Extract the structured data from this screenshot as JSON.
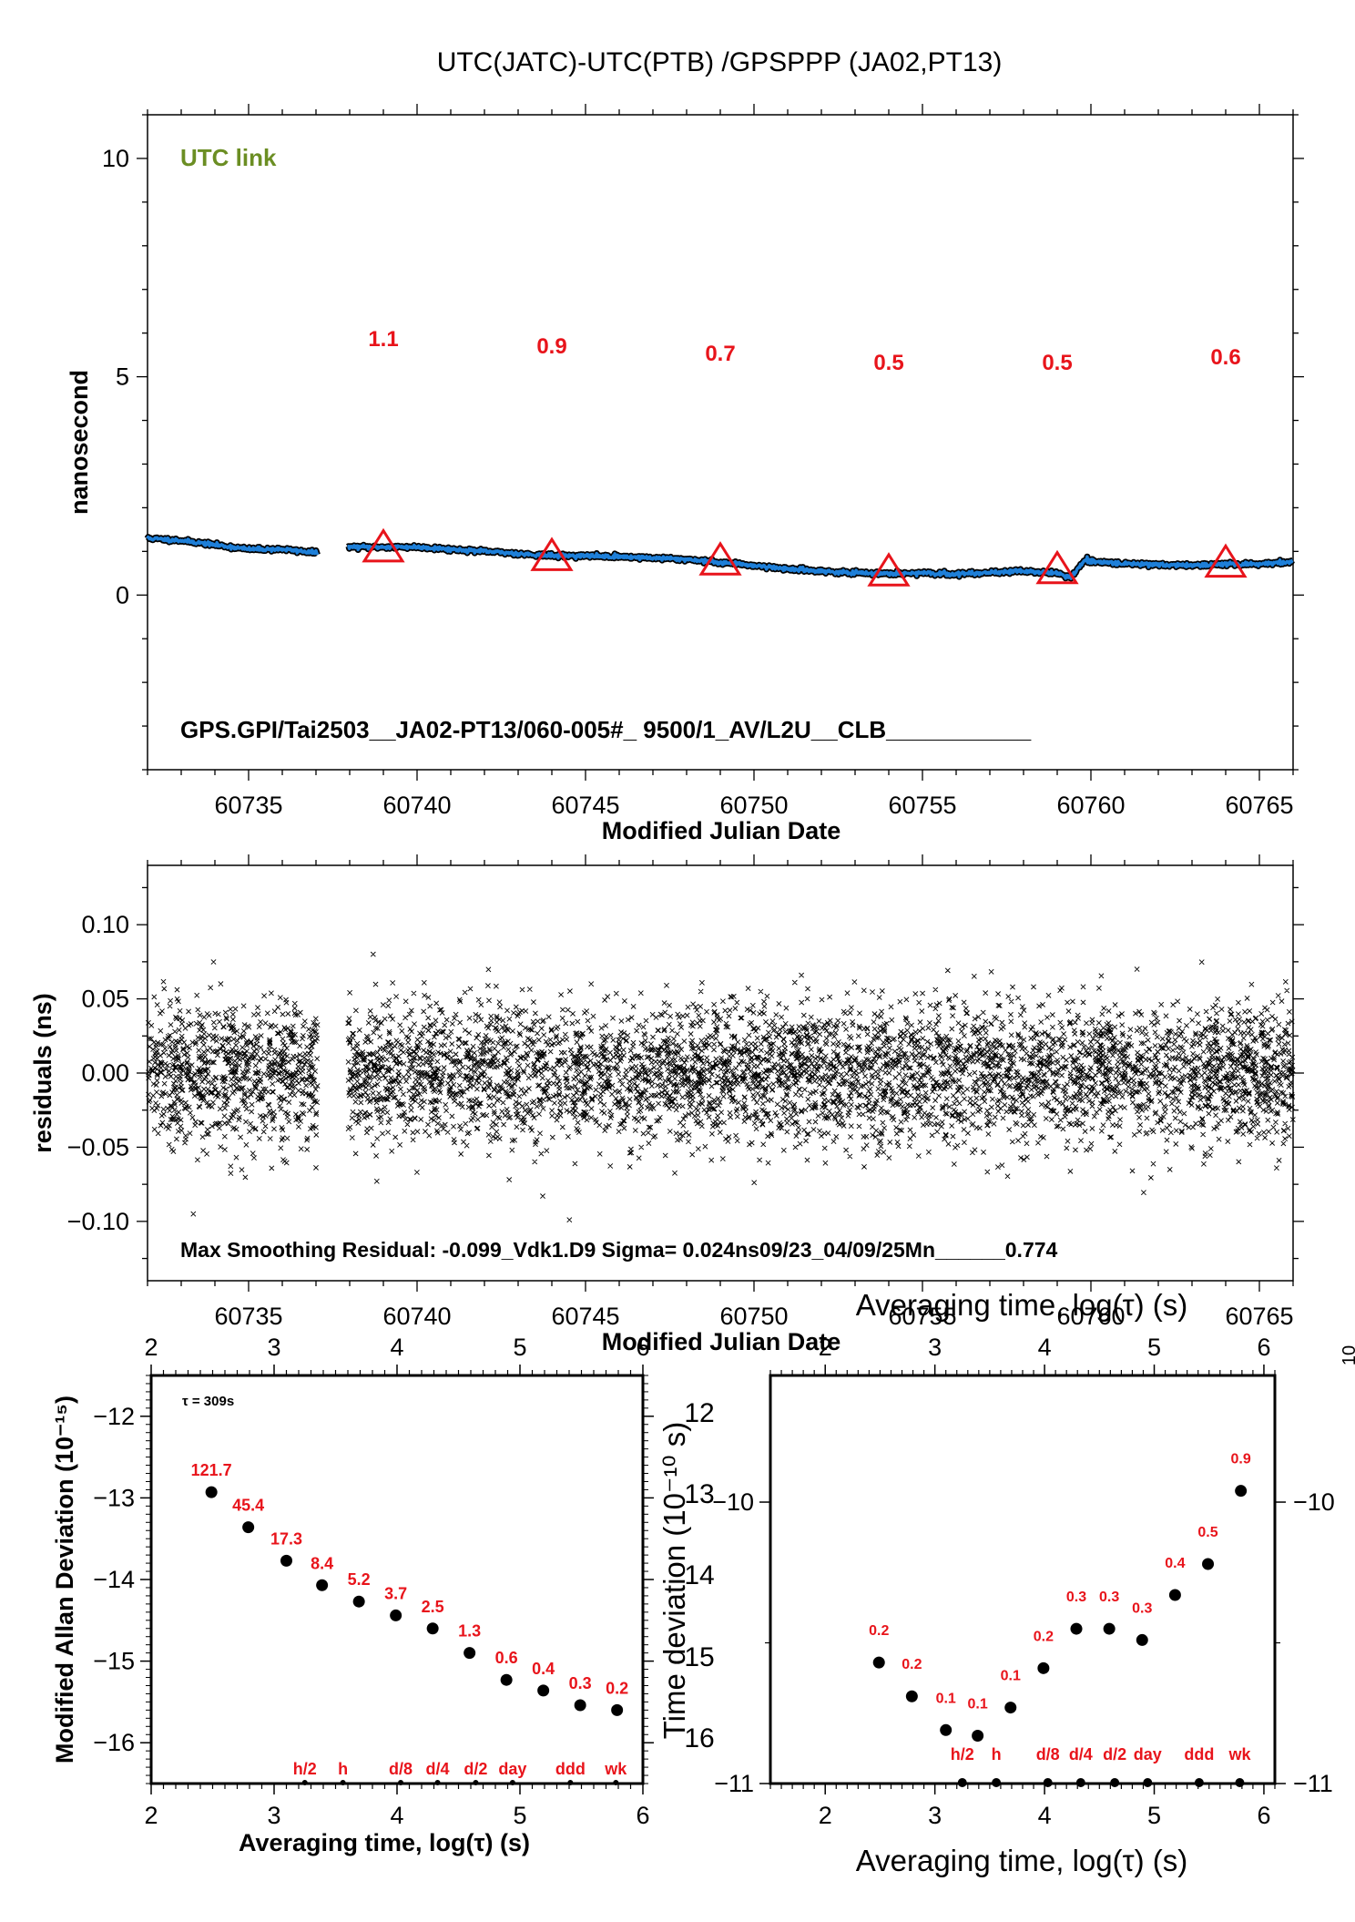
{
  "page": {
    "title": "UTC(JATC)-UTC(PTB)  /GPSPPP  (JA02,PT13)"
  },
  "colors": {
    "series_line": "#1e7fd8",
    "series_edge": "#000000",
    "annotation": "#e8141b",
    "utc_link": "#6b8e23",
    "marker": "#000000"
  },
  "chart_data": [
    {
      "type": "line",
      "id": "time-series",
      "xlabel": "Modified Julian Date",
      "ylabel": "nanosecond",
      "xlim": [
        60732,
        60766
      ],
      "ylim": [
        -4,
        11
      ],
      "x_ticks": [
        60735,
        60740,
        60745,
        60750,
        60755,
        60760,
        60765
      ],
      "y_ticks": [
        0,
        5,
        10
      ],
      "legend_label": "UTC link",
      "footer_label": "GPS.GPI/Tai2503__JA02-PT13/060-005#_  9500/1_AV/L2U__CLB___________",
      "gap": [
        60737.05,
        60737.95
      ],
      "series_points": [
        [
          60732.0,
          1.3
        ],
        [
          60733.0,
          1.25
        ],
        [
          60734.0,
          1.15
        ],
        [
          60735.0,
          1.05
        ],
        [
          60736.0,
          1.05
        ],
        [
          60737.0,
          0.97
        ],
        [
          60738.0,
          1.1
        ],
        [
          60739.0,
          1.1
        ],
        [
          60740.0,
          1.1
        ],
        [
          60741.0,
          1.05
        ],
        [
          60742.0,
          1.0
        ],
        [
          60743.0,
          0.95
        ],
        [
          60744.0,
          0.9
        ],
        [
          60745.0,
          0.9
        ],
        [
          60746.0,
          0.88
        ],
        [
          60747.0,
          0.85
        ],
        [
          60748.0,
          0.82
        ],
        [
          60749.0,
          0.75
        ],
        [
          60750.0,
          0.68
        ],
        [
          60751.0,
          0.6
        ],
        [
          60752.0,
          0.55
        ],
        [
          60753.0,
          0.5
        ],
        [
          60754.0,
          0.5
        ],
        [
          60755.0,
          0.5
        ],
        [
          60756.0,
          0.48
        ],
        [
          60757.0,
          0.52
        ],
        [
          60758.0,
          0.55
        ],
        [
          60759.0,
          0.5
        ],
        [
          60759.4,
          0.4
        ],
        [
          60759.8,
          0.78
        ],
        [
          60761.0,
          0.72
        ],
        [
          60762.0,
          0.7
        ],
        [
          60763.0,
          0.68
        ],
        [
          60764.0,
          0.7
        ],
        [
          60765.0,
          0.72
        ],
        [
          60766.0,
          0.75
        ]
      ],
      "triangles": [
        {
          "x": 60739,
          "y": 1.1,
          "label": "1.1"
        },
        {
          "x": 60744,
          "y": 0.9,
          "label": "0.9"
        },
        {
          "x": 60749,
          "y": 0.8,
          "label": "0.7"
        },
        {
          "x": 60754,
          "y": 0.55,
          "label": "0.5"
        },
        {
          "x": 60759,
          "y": 0.6,
          "label": "0.5"
        },
        {
          "x": 60764,
          "y": 0.75,
          "label": "0.6"
        }
      ]
    },
    {
      "type": "scatter",
      "id": "residuals",
      "xlabel": "Modified Julian Date",
      "ylabel": "residuals (ns)",
      "xlim": [
        60732,
        60766
      ],
      "ylim": [
        -0.14,
        0.14
      ],
      "x_ticks": [
        60735,
        60740,
        60745,
        60750,
        60755,
        60760,
        60765
      ],
      "y_ticks": [
        -0.1,
        -0.05,
        0.0,
        0.05,
        0.1
      ],
      "y_tick_labels": [
        "−0.10",
        "−0.05",
        "0.00",
        "0.05",
        "0.10"
      ],
      "footer_label": "Max Smoothing Residual: -0.099_Vdk1.D9  Sigma= 0.024ns09/23_04/09/25Mn______0.774",
      "sigma": 0.024,
      "gap": [
        60737.05,
        60737.95
      ],
      "point_count": 5600,
      "seed": 7
    },
    {
      "type": "scatter",
      "id": "mod-allan-deviation",
      "xlabel": "Averaging time, log(τ) (s)",
      "ylabel": "Modified Allan Deviation (10⁻¹⁵)",
      "xlim": [
        2,
        6
      ],
      "ylim": [
        -16.5,
        -11.5
      ],
      "x_ticks": [
        2,
        3,
        4,
        5,
        6
      ],
      "y_ticks": [
        -16,
        -15,
        -14,
        -13,
        -12
      ],
      "y_tick_labels": [
        "−16",
        "−15",
        "−14",
        "−13",
        "−12"
      ],
      "tau_note": "τ = 309s",
      "points": [
        {
          "x": 2.49,
          "y": -12.93,
          "label": "121.7"
        },
        {
          "x": 2.79,
          "y": -13.36,
          "label": "45.4"
        },
        {
          "x": 3.1,
          "y": -13.77,
          "label": "17.3"
        },
        {
          "x": 3.39,
          "y": -14.07,
          "label": "8.4"
        },
        {
          "x": 3.69,
          "y": -14.27,
          "label": "5.2"
        },
        {
          "x": 3.99,
          "y": -14.44,
          "label": "3.7"
        },
        {
          "x": 4.29,
          "y": -14.6,
          "label": "2.5"
        },
        {
          "x": 4.59,
          "y": -14.9,
          "label": "1.3"
        },
        {
          "x": 4.89,
          "y": -15.23,
          "label": "0.6"
        },
        {
          "x": 5.19,
          "y": -15.36,
          "label": "0.4"
        },
        {
          "x": 5.49,
          "y": -15.54,
          "label": "0.3"
        },
        {
          "x": 5.79,
          "y": -15.6,
          "label": "0.2"
        }
      ],
      "time_marks": [
        {
          "x": 3.25,
          "label": "h/2"
        },
        {
          "x": 3.56,
          "label": "h"
        },
        {
          "x": 4.03,
          "label": "d/8"
        },
        {
          "x": 4.33,
          "label": "d/4"
        },
        {
          "x": 4.64,
          "label": "d/2"
        },
        {
          "x": 4.94,
          "label": "day"
        },
        {
          "x": 5.41,
          "label": "ddd"
        },
        {
          "x": 5.78,
          "label": "wk"
        }
      ]
    },
    {
      "type": "scatter",
      "id": "time-deviation",
      "title": "Averaging time, log(τ) (s)",
      "xlabel": "Averaging time, log(τ) (s)",
      "ylabel": "Time deviation (10⁻¹⁰ s)",
      "xlim": [
        1.5,
        6.1
      ],
      "ylim": [
        -11,
        -9.55
      ],
      "x_ticks": [
        2,
        3,
        4,
        5,
        6
      ],
      "y_ticks": [
        -11,
        -10
      ],
      "y_tick_labels": [
        "−11",
        "−10"
      ],
      "ghost_left_ticks": [
        "12",
        "13",
        "14",
        "15",
        "16"
      ],
      "ghost_right_label": "10",
      "points": [
        {
          "x": 2.49,
          "y": -10.57,
          "label": "0.2"
        },
        {
          "x": 2.79,
          "y": -10.69,
          "label": "0.2"
        },
        {
          "x": 3.1,
          "y": -10.81,
          "label": "0.1"
        },
        {
          "x": 3.39,
          "y": -10.83,
          "label": "0.1"
        },
        {
          "x": 3.69,
          "y": -10.73,
          "label": "0.1"
        },
        {
          "x": 3.99,
          "y": -10.59,
          "label": "0.2"
        },
        {
          "x": 4.29,
          "y": -10.45,
          "label": "0.3"
        },
        {
          "x": 4.59,
          "y": -10.45,
          "label": "0.3"
        },
        {
          "x": 4.89,
          "y": -10.49,
          "label": "0.3"
        },
        {
          "x": 5.19,
          "y": -10.33,
          "label": "0.4"
        },
        {
          "x": 5.49,
          "y": -10.22,
          "label": "0.5"
        },
        {
          "x": 5.79,
          "y": -9.96,
          "label": "0.9"
        }
      ],
      "time_marks": [
        {
          "x": 3.25,
          "label": "h/2"
        },
        {
          "x": 3.56,
          "label": "h"
        },
        {
          "x": 4.03,
          "label": "d/8"
        },
        {
          "x": 4.33,
          "label": "d/4"
        },
        {
          "x": 4.64,
          "label": "d/2"
        },
        {
          "x": 4.94,
          "label": "day"
        },
        {
          "x": 5.41,
          "label": "ddd"
        },
        {
          "x": 5.78,
          "label": "wk"
        }
      ]
    }
  ]
}
